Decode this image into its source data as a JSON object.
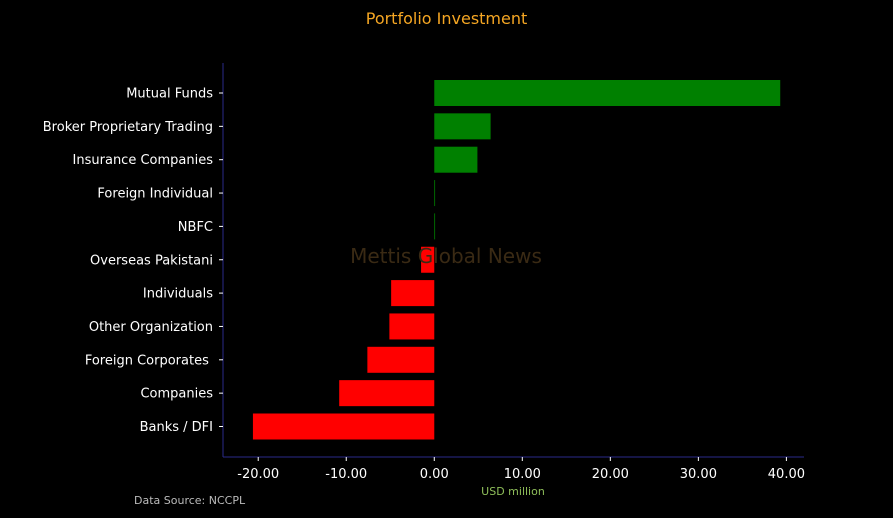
{
  "chart_data": {
    "type": "bar",
    "orientation": "horizontal",
    "title": "Portfolio Investment",
    "xlabel": "USD million",
    "ylabel": "",
    "source_note": "Data Source: NCCPL",
    "watermark": "Mettis Global News",
    "categories": [
      "Mutual Funds",
      "Broker Proprietary Trading",
      "Insurance Companies",
      "Foreign Individual",
      "NBFC",
      "Overseas Pakistani",
      "Individuals",
      "Other Organization",
      "Foreign Corporates ",
      "Companies",
      "Banks / DFI"
    ],
    "values": [
      39.3,
      6.4,
      4.9,
      0.05,
      0.05,
      -1.5,
      -4.9,
      -5.1,
      -7.6,
      -10.8,
      -20.6
    ],
    "xlim": [
      -24,
      42
    ],
    "xticks": [
      -20,
      -10,
      0,
      10,
      20,
      30,
      40
    ],
    "xtick_labels": [
      "-20.00",
      "-10.00",
      "0.00",
      "10.00",
      "20.00",
      "30.00",
      "40.00"
    ],
    "grid": false,
    "legend": "none",
    "colors": {
      "background": "#000000",
      "positive": "#008000",
      "negative": "#ff0000",
      "title": "#f5a623",
      "xlabel": "#8fbf5a",
      "axis": "#2a2a8a",
      "tick_text": "#ffffff",
      "source_text": "#bbbbbb",
      "watermark": "#3a2a14"
    }
  }
}
